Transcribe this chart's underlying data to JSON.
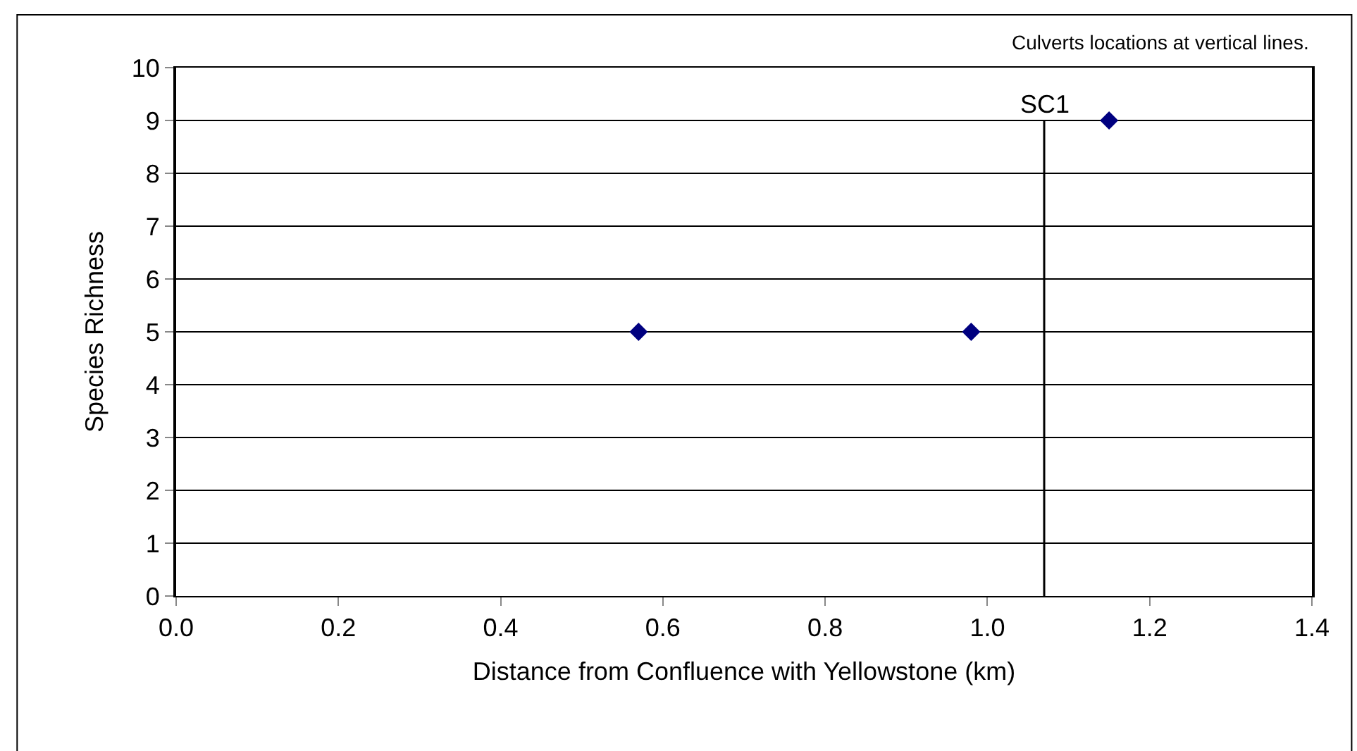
{
  "chart_data": {
    "type": "scatter",
    "xlabel": "Distance from Confluence with Yellowstone (km)",
    "ylabel": "Species Richness",
    "annotations": [
      "Culverts locations at vertical lines."
    ],
    "x": [
      0.57,
      0.98,
      1.15
    ],
    "series": [
      {
        "color": "#000080",
        "values": [
          5,
          5,
          9
        ]
      }
    ],
    "xlim": [
      0,
      1.4
    ],
    "xticks": [
      {
        "value": 0,
        "label": "0.0"
      },
      0.2,
      0.4,
      0.6,
      0.8,
      {
        "value": 1,
        "label": "1.0"
      },
      1.2,
      1.4
    ],
    "ylim": [
      0,
      10
    ],
    "yticks": [
      0,
      1,
      2,
      3,
      4,
      5,
      6,
      7,
      8,
      9,
      10
    ],
    "ref_lines": [
      {
        "axis": "x",
        "value": 1.07,
        "label": "SC1",
        "color": "#000000"
      }
    ],
    "grid": "y",
    "legend": false,
    "marker": "diamond"
  }
}
